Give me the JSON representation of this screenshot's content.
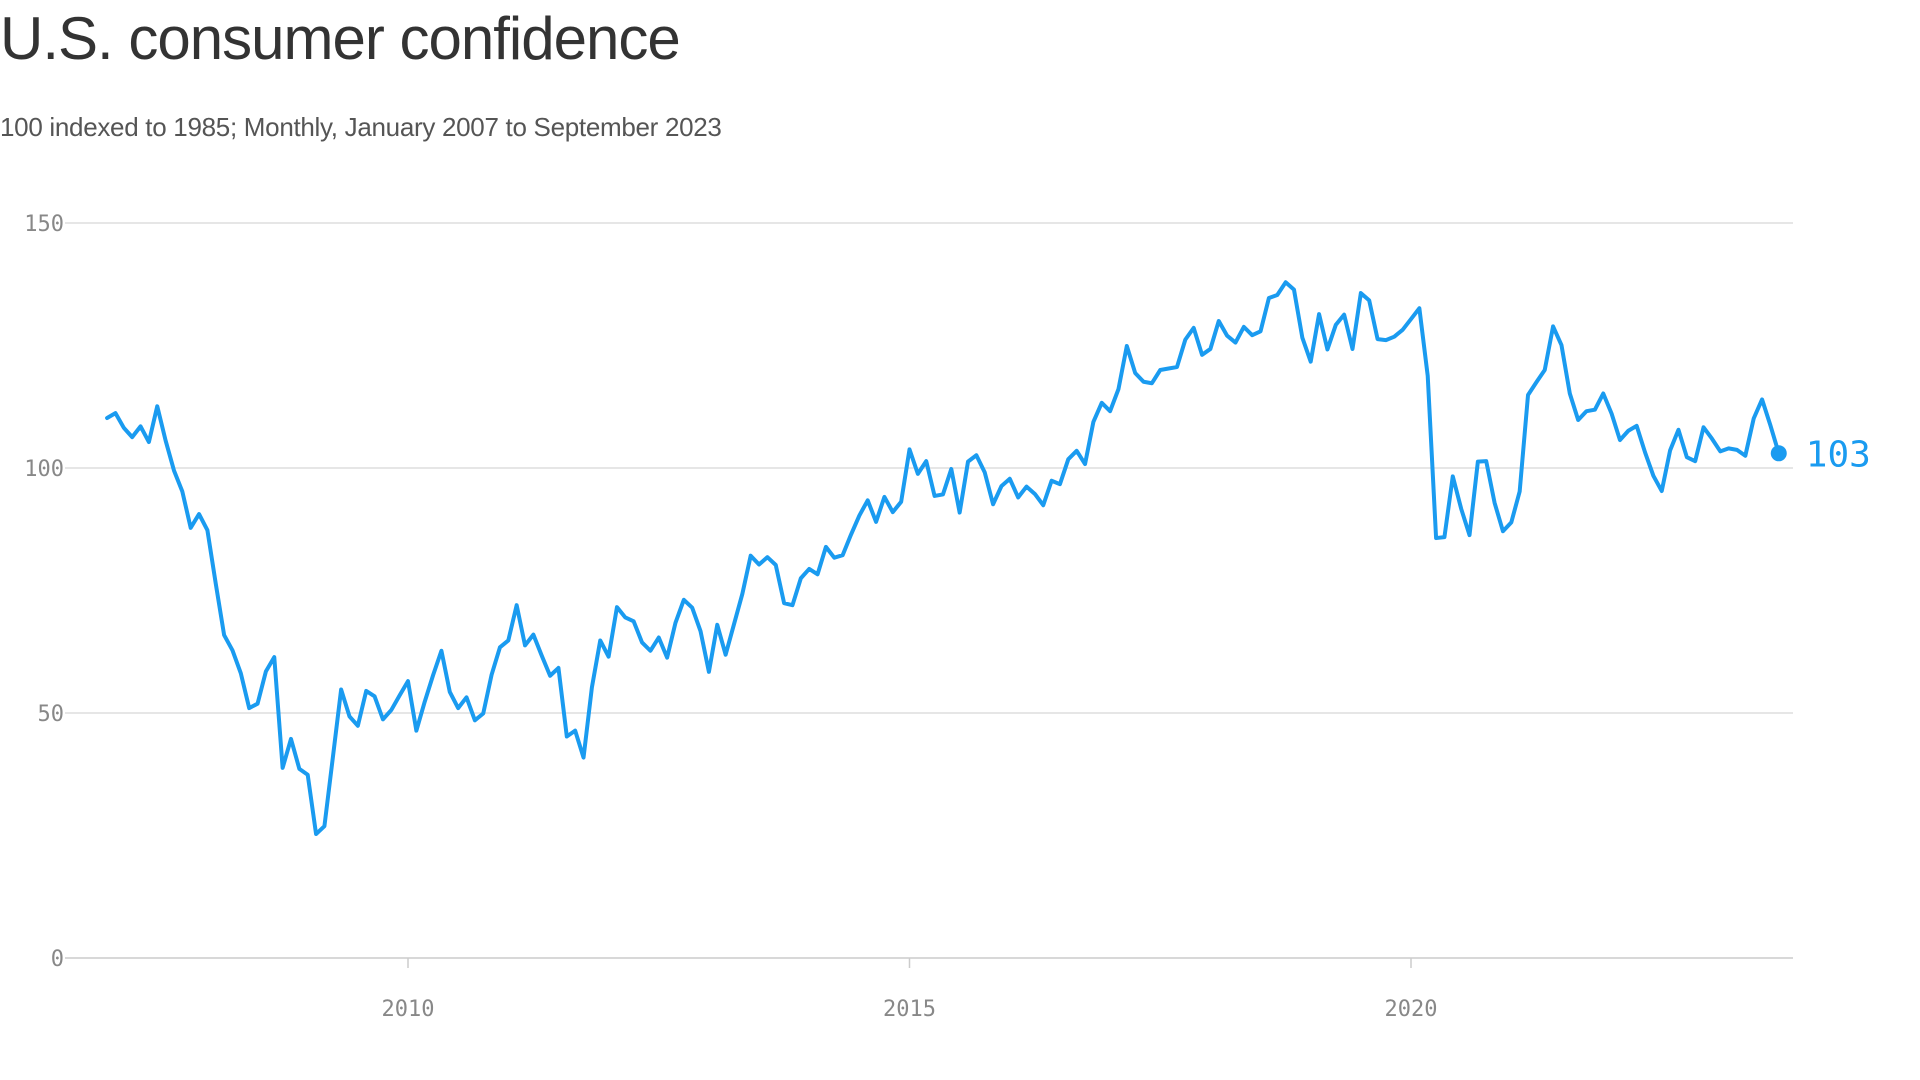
{
  "chart_data": {
    "type": "line",
    "title": "U.S. consumer confidence",
    "subtitle": "100 indexed to 1985; Monthly, January 2007 to September 2023",
    "xlabel": "",
    "ylabel": "",
    "x_start": "2007-01",
    "x_end": "2023-09",
    "xlim": [
      2007.0,
      2023.67
    ],
    "ylim": [
      0,
      150
    ],
    "y_ticks": [
      "0",
      "50",
      "100",
      "150"
    ],
    "x_ticks": [
      "2010",
      "2015",
      "2020"
    ],
    "grid": true,
    "legend": "none",
    "line_color": "#1a9bf0",
    "end_label": "103",
    "series": [
      {
        "values": [
          110.2,
          111.2,
          108.2,
          106.3,
          108.5,
          105.3,
          112.6,
          105.6,
          99.5,
          95.2,
          87.8,
          90.6,
          87.3,
          76.4,
          65.9,
          62.8,
          58.1,
          51.0,
          51.9,
          58.5,
          61.4,
          38.8,
          44.7,
          38.6,
          37.4,
          25.3,
          26.9,
          40.8,
          54.8,
          49.3,
          47.4,
          54.5,
          53.4,
          48.7,
          50.6,
          53.6,
          56.5,
          46.4,
          52.3,
          57.7,
          62.7,
          54.3,
          51.0,
          53.2,
          48.5,
          49.9,
          57.8,
          63.4,
          64.8,
          72.0,
          63.8,
          66.0,
          61.7,
          57.6,
          59.2,
          45.2,
          46.4,
          40.9,
          55.2,
          64.8,
          61.5,
          71.6,
          69.5,
          68.7,
          64.4,
          62.7,
          65.4,
          61.3,
          68.4,
          73.1,
          71.5,
          66.7,
          58.4,
          68.0,
          61.9,
          68.1,
          74.3,
          82.1,
          80.3,
          81.8,
          80.2,
          72.4,
          72.0,
          77.5,
          79.4,
          78.3,
          83.9,
          81.7,
          82.2,
          86.4,
          90.3,
          93.4,
          89.0,
          94.1,
          91.0,
          93.1,
          103.8,
          98.8,
          101.4,
          94.3,
          94.6,
          99.8,
          90.9,
          101.3,
          102.6,
          99.1,
          92.6,
          96.3,
          97.8,
          94.0,
          96.2,
          94.7,
          92.4,
          97.4,
          96.7,
          101.8,
          103.5,
          100.8,
          109.4,
          113.3,
          111.6,
          116.1,
          124.9,
          119.4,
          117.6,
          117.3,
          120.0,
          120.3,
          120.6,
          126.2,
          128.6,
          123.1,
          124.3,
          130.0,
          127.0,
          125.6,
          128.8,
          127.1,
          127.9,
          134.7,
          135.3,
          137.9,
          136.4,
          126.6,
          121.7,
          131.4,
          124.2,
          129.2,
          131.3,
          124.3,
          135.7,
          134.2,
          126.3,
          126.1,
          126.8,
          128.2,
          130.4,
          132.6,
          118.8,
          85.7,
          85.9,
          98.3,
          91.7,
          86.3,
          101.3,
          101.4,
          92.9,
          87.1,
          88.9,
          95.2,
          114.9,
          117.5,
          120.0,
          128.9,
          125.1,
          115.2,
          109.8,
          111.6,
          111.9,
          115.2,
          111.1,
          105.7,
          107.6,
          108.6,
          103.2,
          98.4,
          95.3,
          103.6,
          107.8,
          102.2,
          101.4,
          108.3,
          106.0,
          103.4,
          104.0,
          103.7,
          102.5,
          110.1,
          114.0,
          108.7,
          103.0
        ]
      }
    ]
  }
}
